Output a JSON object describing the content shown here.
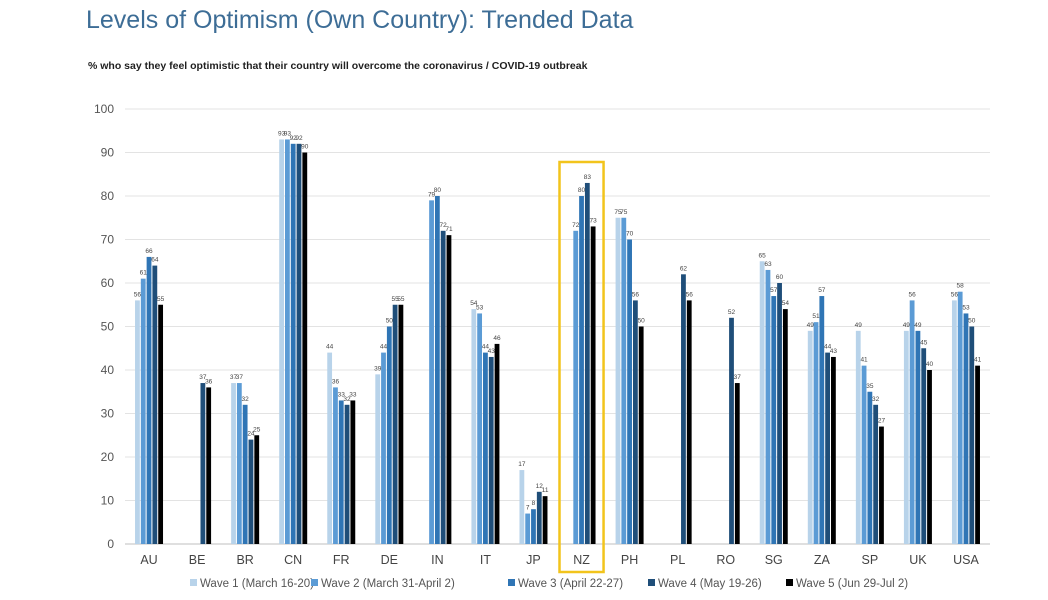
{
  "chart_data": {
    "type": "bar",
    "title": "Levels of Optimism (Own Country): Trended Data",
    "subtitle": "% who say they feel optimistic that their country will overcome the coronavirus / COVID-19 outbreak",
    "xlabel": "",
    "ylabel": "",
    "ylim": [
      0,
      100
    ],
    "yticks": [
      0,
      10,
      20,
      30,
      40,
      50,
      60,
      70,
      80,
      90,
      100
    ],
    "grid": true,
    "legend_position": "bottom",
    "highlighted_category": "NZ",
    "highlight_color": "#f2c41c",
    "categories": [
      "AU",
      "BE",
      "BR",
      "CN",
      "FR",
      "DE",
      "IN",
      "IT",
      "JP",
      "NZ",
      "PH",
      "PL",
      "RO",
      "SG",
      "ZA",
      "SP",
      "UK",
      "USA"
    ],
    "series": [
      {
        "name": "Wave 1 (March 16-20)",
        "color": "#b8d3ea",
        "values": [
          56,
          null,
          37,
          93,
          44,
          39,
          null,
          54,
          17,
          null,
          75,
          null,
          null,
          65,
          49,
          49,
          49,
          56
        ]
      },
      {
        "name": "Wave 2 (March 31-April 2)",
        "color": "#5b9bd5",
        "values": [
          61,
          null,
          37,
          93,
          36,
          44,
          79,
          53,
          7,
          72,
          75,
          null,
          null,
          63,
          51,
          41,
          56,
          58
        ]
      },
      {
        "name": "Wave 3 (April 22-27)",
        "color": "#2f75b5",
        "values": [
          66,
          null,
          32,
          92,
          33,
          50,
          80,
          44,
          8,
          80,
          70,
          null,
          null,
          57,
          57,
          35,
          49,
          53
        ]
      },
      {
        "name": "Wave 4 (May 19-26)",
        "color": "#1f4e79",
        "values": [
          64,
          37,
          24,
          92,
          32,
          55,
          72,
          43,
          12,
          83,
          56,
          62,
          52,
          60,
          44,
          32,
          45,
          50
        ]
      },
      {
        "name": "Wave 5 (Jun 29-Jul 2)",
        "color": "#000000",
        "values": [
          55,
          36,
          25,
          90,
          33,
          55,
          71,
          46,
          11,
          73,
          50,
          56,
          37,
          54,
          43,
          27,
          40,
          41
        ]
      }
    ]
  }
}
